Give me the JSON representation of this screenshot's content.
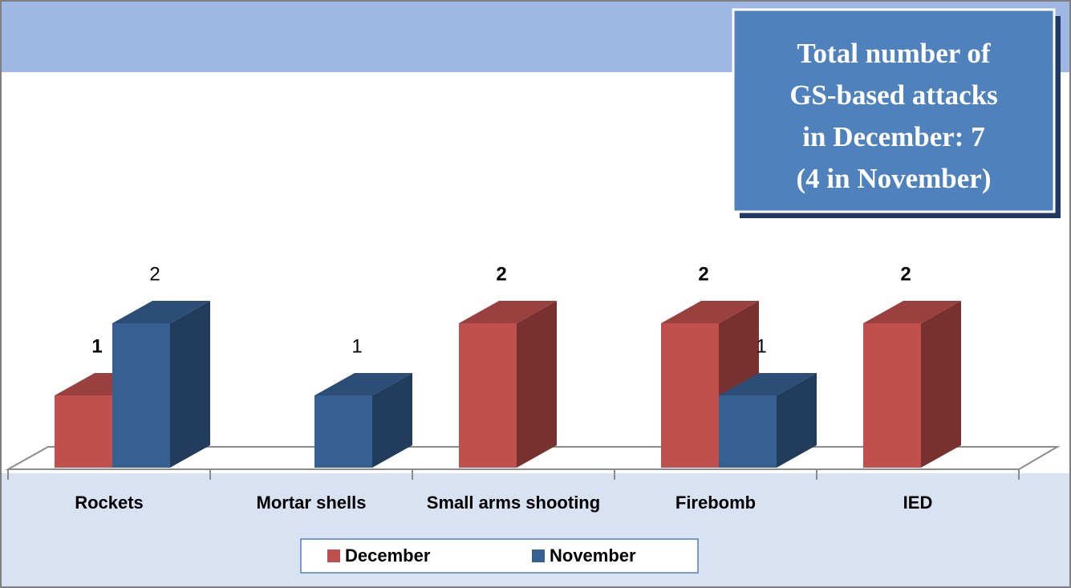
{
  "chart_data": {
    "type": "bar3d",
    "annotation": [
      "Total number of",
      "GS-based attacks",
      "in December: 7",
      "(4 in November)"
    ],
    "categories": [
      "Rockets",
      "Mortar shells",
      "Small arms shooting",
      "Firebomb",
      "IED"
    ],
    "series": [
      {
        "name": "December",
        "color": "#c0504d",
        "values": [
          1,
          null,
          2,
          2,
          2
        ]
      },
      {
        "name": "November",
        "color": "#376092",
        "values": [
          2,
          1,
          null,
          1,
          null
        ]
      }
    ],
    "legend": "bottom"
  }
}
